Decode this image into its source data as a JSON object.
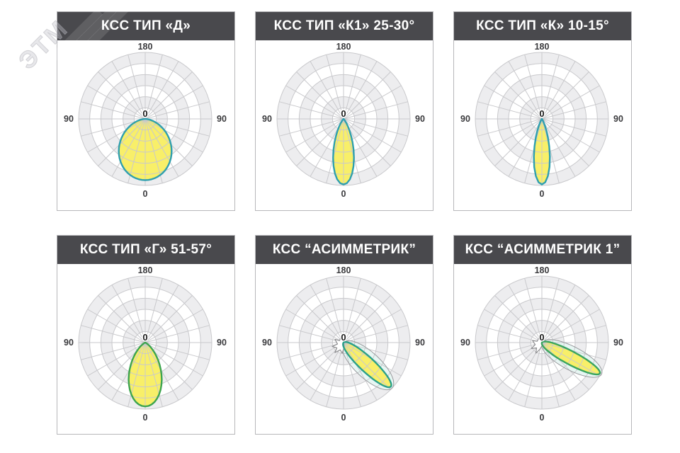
{
  "watermark": {
    "text": "ЭТМ"
  },
  "header_style": {
    "bg": "#49494d",
    "text_color": "#ffffff"
  },
  "grid": {
    "rings": 6,
    "spoke_step_deg": 15,
    "line_color": "#c9c9cc",
    "band_color": "#ededef",
    "label_color": "#3a3a3d"
  },
  "chart_data": [
    {
      "type": "polar",
      "title": "КСС ТИП «Д»",
      "angle_labels": {
        "top": "180",
        "left": "90",
        "right": "90",
        "bottom": "0",
        "origin": "0"
      },
      "rings": 6,
      "spoke_step_deg": 15,
      "lobe": {
        "model": "cosine-power",
        "power": 1.5,
        "max_r": 0.92,
        "tilt_deg": 0,
        "fill": "#f8ef69",
        "stroke": "#2f9fae"
      }
    },
    {
      "type": "polar",
      "title": "КСС ТИП «К1» 25-30°",
      "angle_labels": {
        "top": "180",
        "left": "90",
        "right": "90",
        "bottom": "0",
        "origin": "0"
      },
      "rings": 6,
      "spoke_step_deg": 15,
      "lobe": {
        "model": "cosine-power",
        "power": 14,
        "max_r": 0.985,
        "tilt_deg": 0,
        "fill": "#f8ef69",
        "stroke": "#2f9fae"
      }
    },
    {
      "type": "polar",
      "title": "КСС ТИП «К» 10-15°",
      "angle_labels": {
        "top": "180",
        "left": "90",
        "right": "90",
        "bottom": "0",
        "origin": "0"
      },
      "rings": 6,
      "spoke_step_deg": 15,
      "lobe": {
        "model": "cosine-power",
        "power": 24,
        "max_r": 0.985,
        "tilt_deg": 0,
        "fill": "#f8ef69",
        "stroke": "#2f9fae"
      }
    },
    {
      "type": "polar",
      "title": "КСС ТИП «Г» 51-57°",
      "angle_labels": {
        "top": "180",
        "left": "90",
        "right": "90",
        "bottom": "0",
        "origin": "0"
      },
      "rings": 6,
      "spoke_step_deg": 15,
      "lobe": {
        "model": "cosine-power",
        "power": 5,
        "max_r": 0.96,
        "tilt_deg": 0,
        "fill": "#f8ef69",
        "stroke": "#3da44f"
      }
    },
    {
      "type": "polar",
      "title": "КСС “АСИММЕТРИК”",
      "angle_labels": {
        "top": "180",
        "left": "90",
        "right": "90",
        "bottom": "0",
        "origin": "0"
      },
      "rings": 6,
      "spoke_step_deg": 15,
      "lobe": {
        "model": "beam",
        "tilt_deg": 47,
        "length": 0.97,
        "half_width": 0.11,
        "fill": "#f8ef69",
        "stroke": "#2aa089",
        "halo_fill": "#e7f6f3",
        "halo_stroke": "#9a9a9e",
        "backlobe": [
          [
            0,
            -0.02
          ],
          [
            -0.03,
            -0.11
          ],
          [
            -0.06,
            -0.03
          ],
          [
            -0.13,
            -0.05
          ],
          [
            -0.09,
            0.02
          ],
          [
            -0.17,
            0.06
          ],
          [
            -0.1,
            0.08
          ],
          [
            -0.13,
            0.15
          ],
          [
            -0.05,
            0.11
          ],
          [
            -0.02,
            0.16
          ],
          [
            0.01,
            0.07
          ]
        ]
      }
    },
    {
      "type": "polar",
      "title": "КСС “АСИММЕТРИК 1”",
      "angle_labels": {
        "top": "180",
        "left": "90",
        "right": "90",
        "bottom": "0",
        "origin": "0"
      },
      "rings": 6,
      "spoke_step_deg": 15,
      "lobe": {
        "model": "beam",
        "tilt_deg": 62,
        "length": 0.985,
        "half_width": 0.1,
        "fill": "#f8ef69",
        "stroke": "#3aa45f",
        "halo_fill": "#e7f6f3",
        "halo_stroke": "#9a9a9e",
        "backlobe": [
          [
            0.01,
            -0.01
          ],
          [
            -0.04,
            -0.08
          ],
          [
            -0.07,
            -0.02
          ],
          [
            -0.14,
            -0.03
          ],
          [
            -0.1,
            0.03
          ],
          [
            -0.16,
            0.09
          ],
          [
            -0.08,
            0.08
          ],
          [
            -0.09,
            0.16
          ],
          [
            -0.03,
            0.1
          ],
          [
            0,
            0.05
          ]
        ]
      }
    }
  ]
}
